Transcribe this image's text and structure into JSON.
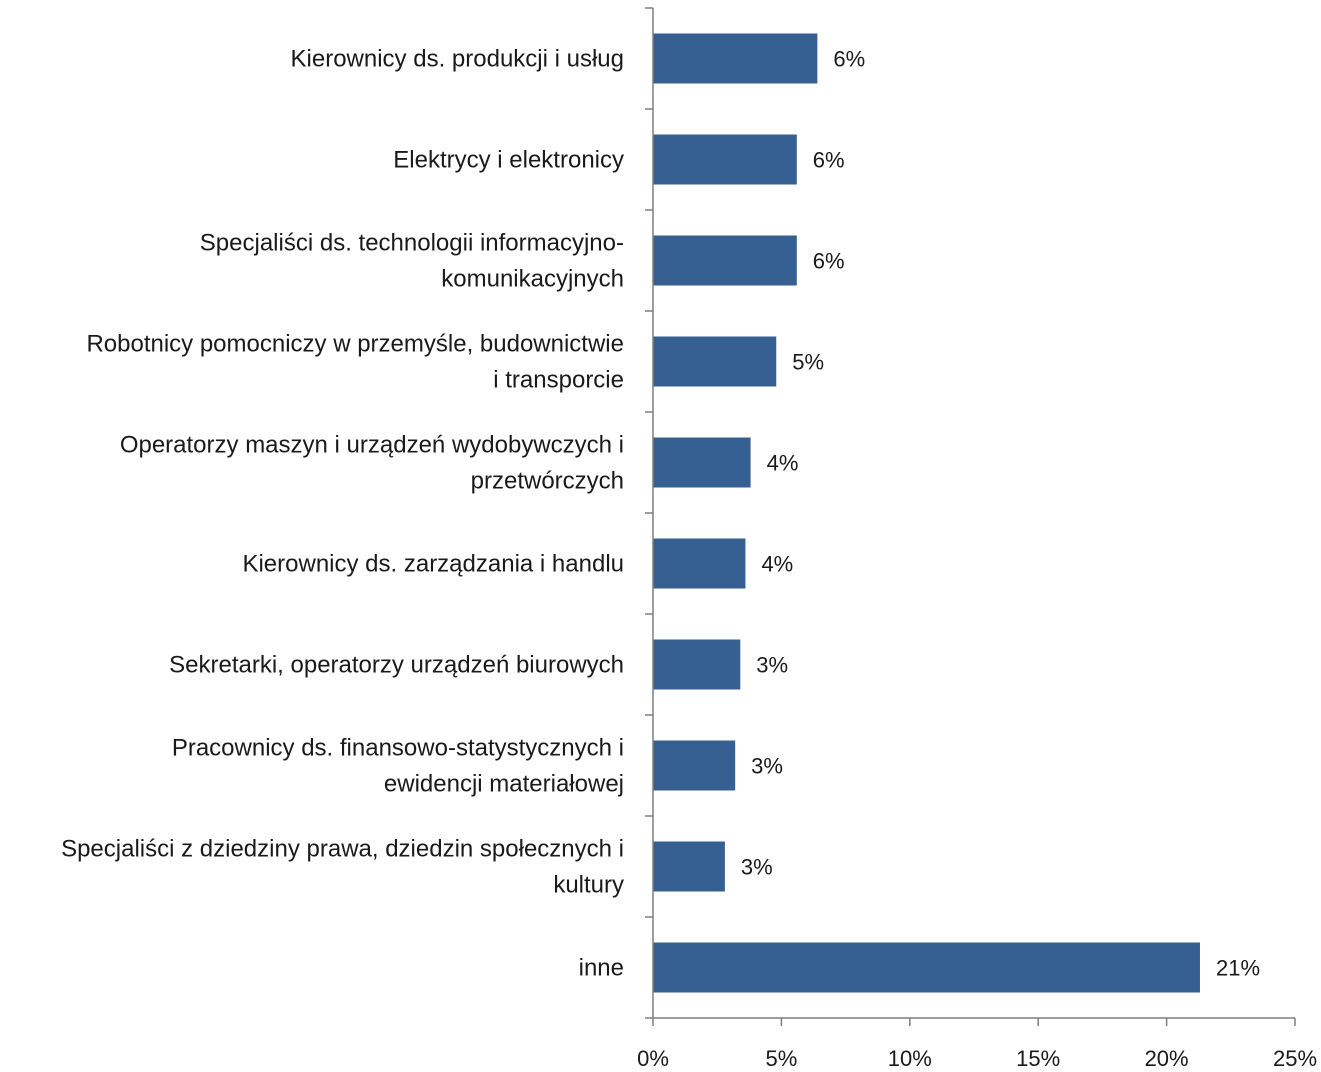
{
  "chart_data": {
    "type": "bar",
    "orientation": "horizontal",
    "categories": [
      [
        "Kierownicy ds. produkcji i usług"
      ],
      [
        "Elektrycy i elektronicy"
      ],
      [
        "Specjaliści ds. technologii informacyjno-",
        "komunikacyjnych"
      ],
      [
        "Robotnicy pomocniczy w przemyśle, budownictwie",
        "i transporcie"
      ],
      [
        "Operatorzy maszyn i urządzeń wydobywczych i",
        "przetwórczych"
      ],
      [
        "Kierownicy ds. zarządzania i handlu"
      ],
      [
        "Sekretarki, operatorzy urządzeń biurowych"
      ],
      [
        "Pracownicy ds. finansowo-statystycznych i",
        "ewidencji materiałowej"
      ],
      [
        "Specjaliści z dziedziny prawa, dziedzin społecznych i",
        "kultury"
      ],
      [
        "inne"
      ]
    ],
    "values": [
      6.4,
      5.6,
      5.6,
      4.8,
      3.8,
      3.6,
      3.4,
      3.2,
      2.8,
      21.3
    ],
    "data_labels": [
      "6%",
      "6%",
      "6%",
      "5%",
      "4%",
      "4%",
      "3%",
      "3%",
      "3%",
      "21%"
    ],
    "xlim": [
      0,
      25
    ],
    "x_ticks": [
      0,
      5,
      10,
      15,
      20,
      25
    ],
    "x_tick_labels": [
      "0%",
      "5%",
      "10%",
      "15%",
      "20%",
      "25%"
    ],
    "bar_color": "#376092",
    "axis_color": "#7f7f7f",
    "grid": false,
    "legend": "none",
    "title": "",
    "xlabel": "",
    "ylabel": ""
  }
}
